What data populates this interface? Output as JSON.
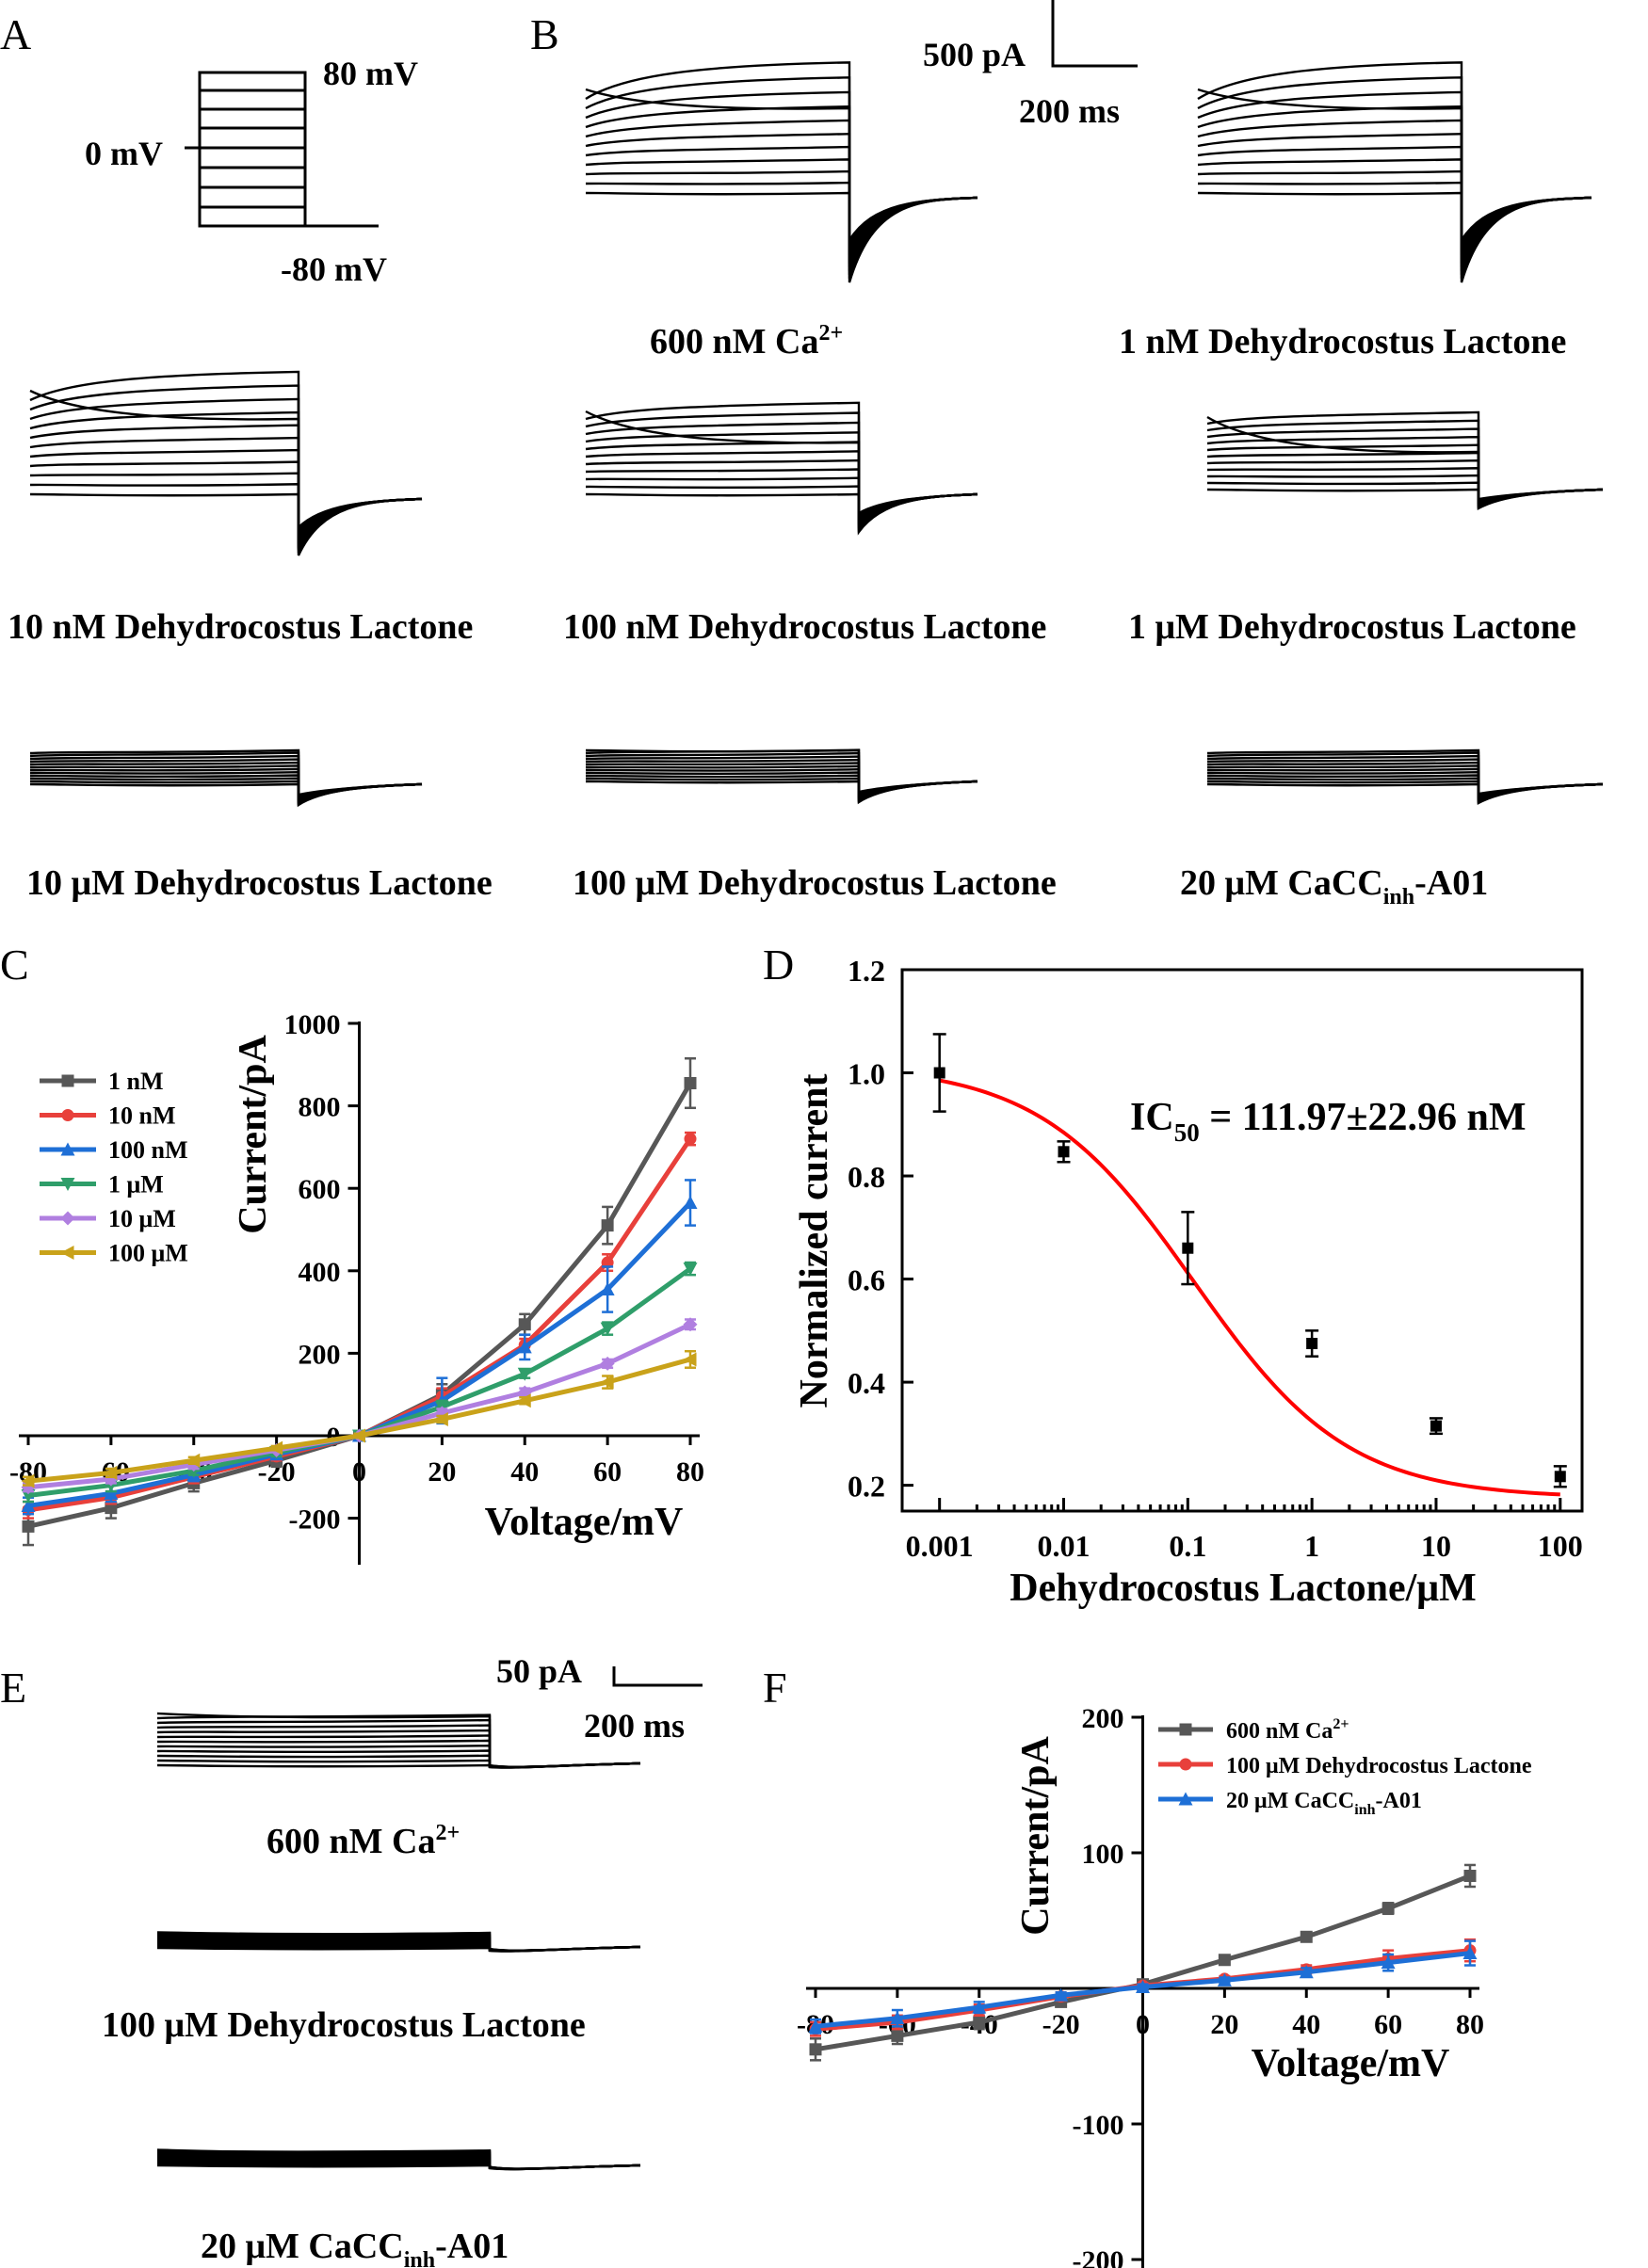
{
  "panels": {
    "A": {
      "label": "A",
      "top_voltage": "80 mV",
      "zero_voltage": "0 mV",
      "bottom_voltage": "-80 mV"
    },
    "B": {
      "label": "B",
      "scale_current": "500 pA",
      "scale_time": "200 ms",
      "conditions": [
        {
          "text": "600 nM Ca",
          "sup": "2+"
        },
        {
          "text": "1 nM Dehydrocostus Lactone"
        },
        {
          "text": "10 nM Dehydrocostus Lactone"
        },
        {
          "text": "100 nM Dehydrocostus Lactone"
        },
        {
          "text": "1 μM Dehydrocostus Lactone"
        },
        {
          "text": "10 μM Dehydrocostus Lactone"
        },
        {
          "text": "100 μM Dehydrocostus Lactone"
        },
        {
          "text": "20 μM CaCC",
          "sub": "inh",
          "tail": "-A01"
        }
      ]
    },
    "C": {
      "label": "C"
    },
    "D": {
      "label": "D"
    },
    "E": {
      "label": "E",
      "scale_current": "50 pA",
      "scale_time": "200 ms",
      "conditions": [
        {
          "text": "600 nM Ca",
          "sup": "2+"
        },
        {
          "text": "100 μM Dehydrocostus Lactone"
        },
        {
          "text": "20 μM CaCC",
          "sub": "inh",
          "tail": "-A01"
        }
      ]
    },
    "F": {
      "label": "F"
    }
  },
  "chart_data": [
    {
      "id": "C",
      "type": "line",
      "xlabel": "Voltage/mV",
      "ylabel": "Current/pA",
      "xlim": [
        -80,
        80
      ],
      "ylim": [
        -300,
        1000
      ],
      "x_ticks": [
        -80,
        -60,
        -40,
        -20,
        0,
        20,
        40,
        60,
        80
      ],
      "y_ticks": [
        -200,
        0,
        200,
        400,
        600,
        800,
        1000
      ],
      "x": [
        -80,
        -60,
        -40,
        -20,
        0,
        20,
        40,
        60,
        80
      ],
      "legend_position": "top-left",
      "series": [
        {
          "name": "1 nM",
          "color": "#575757",
          "marker": "square",
          "values": [
            -220,
            -175,
            -115,
            -60,
            0,
            100,
            270,
            510,
            855
          ],
          "errors": [
            45,
            25,
            20,
            15,
            5,
            25,
            25,
            45,
            60
          ]
        },
        {
          "name": "10 nM",
          "color": "#e8403b",
          "marker": "circle",
          "values": [
            -180,
            -150,
            -100,
            -50,
            0,
            95,
            220,
            420,
            720
          ],
          "errors": [
            20,
            15,
            15,
            10,
            5,
            20,
            15,
            20,
            15
          ]
        },
        {
          "name": "100 nM",
          "color": "#1e6fd6",
          "marker": "triangle-up",
          "values": [
            -170,
            -140,
            -95,
            -45,
            0,
            85,
            215,
            355,
            565
          ],
          "errors": [
            20,
            20,
            15,
            10,
            5,
            55,
            30,
            55,
            55
          ]
        },
        {
          "name": "1 μM",
          "color": "#2f9e6a",
          "marker": "triangle-down",
          "values": [
            -145,
            -120,
            -85,
            -40,
            0,
            70,
            150,
            260,
            405
          ],
          "errors": [
            15,
            15,
            10,
            10,
            5,
            15,
            10,
            15,
            15
          ]
        },
        {
          "name": "10 μM",
          "color": "#b07fe0",
          "marker": "diamond",
          "values": [
            -125,
            -105,
            -70,
            -35,
            0,
            55,
            105,
            175,
            270
          ],
          "errors": [
            10,
            10,
            10,
            5,
            5,
            10,
            10,
            10,
            12
          ]
        },
        {
          "name": "100 μM",
          "color": "#c9a21a",
          "marker": "triangle-left",
          "values": [
            -110,
            -90,
            -60,
            -30,
            0,
            40,
            85,
            130,
            185
          ],
          "errors": [
            10,
            10,
            8,
            5,
            5,
            8,
            8,
            15,
            20
          ]
        }
      ]
    },
    {
      "id": "D",
      "type": "scatter",
      "xlabel": "Dehydrocostus Lactone/μM",
      "ylabel": "Normalized current",
      "x_scale": "log",
      "xlim": [
        0.0005,
        150
      ],
      "ylim": [
        0.15,
        1.2
      ],
      "x_ticks": [
        "0.001",
        "0.01",
        "0.1",
        "1",
        "10",
        "100"
      ],
      "y_ticks": [
        "0.2",
        "0.4",
        "0.6",
        "0.8",
        "1.0",
        "1.2"
      ],
      "x": [
        0.001,
        0.01,
        0.1,
        1,
        10,
        100
      ],
      "values": [
        1.0,
        0.847,
        0.66,
        0.475,
        0.315,
        0.217
      ],
      "errors": [
        0.075,
        0.02,
        0.07,
        0.025,
        0.015,
        0.02
      ],
      "fit": {
        "color": "#ff0000",
        "top": 1.015,
        "bottom": 0.175,
        "logIC50": -0.951,
        "hill": 0.7
      },
      "annotation": {
        "text": "IC",
        "sub": "50",
        "rest": " = 111.97±22.96 nM"
      }
    },
    {
      "id": "F",
      "type": "line",
      "xlabel": "Voltage/mV",
      "ylabel": "Current/pA",
      "xlim": [
        -80,
        80
      ],
      "ylim": [
        -200,
        200
      ],
      "x_ticks": [
        -80,
        -60,
        -40,
        -20,
        0,
        20,
        40,
        60,
        80
      ],
      "y_ticks": [
        -200,
        -100,
        100,
        200
      ],
      "x": [
        -80,
        -60,
        -40,
        -20,
        0,
        20,
        40,
        60,
        80
      ],
      "legend_position": "top-right",
      "series": [
        {
          "name": "600 nM Ca",
          "sup": "2+",
          "color": "#575757",
          "marker": "square",
          "values": [
            -45,
            -35,
            -25,
            -10,
            3,
            21,
            38,
            59,
            83
          ],
          "errors": [
            8,
            6,
            5,
            3,
            2,
            2,
            2,
            4,
            8
          ]
        },
        {
          "name": "100 μM Dehydrocostus Lactone",
          "color": "#e8403b",
          "marker": "circle",
          "values": [
            -30,
            -25,
            -16,
            -6,
            2,
            7,
            14,
            22,
            28
          ],
          "errors": [
            5,
            5,
            4,
            3,
            2,
            2,
            3,
            6,
            8
          ]
        },
        {
          "name": "20 μM CaCC",
          "sub": "inh",
          "tail": "-A01",
          "color": "#1e6fd6",
          "marker": "triangle-up",
          "values": [
            -28,
            -22,
            -14,
            -5,
            1,
            6,
            12,
            19,
            26
          ],
          "errors": [
            5,
            6,
            4,
            2,
            2,
            2,
            3,
            6,
            9
          ]
        }
      ]
    }
  ]
}
